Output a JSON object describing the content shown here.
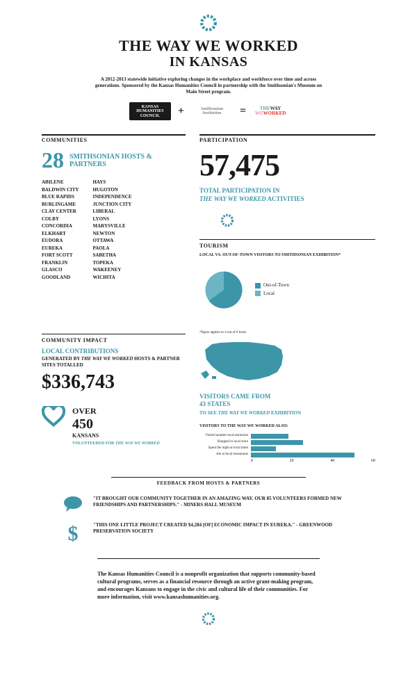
{
  "colors": {
    "teal": "#3d95a8",
    "teal_light": "#6bb5c4",
    "dark": "#1a1a1a",
    "gray": "#888888"
  },
  "title": {
    "line1": "THE WAY WE WORKED",
    "line2": "IN KANSAS"
  },
  "subtitle": "A 2012-2013 statewide initiative exploring changes in the workplace and workforce over time and across generations. Sponsored by the Kansas Humanities Council in partnership with the Smithsonian's Museum on Main Street program.",
  "logos": {
    "kh": "KANSAS HUMANITIES COUNCIL",
    "plus": "+",
    "si": "Smithsonian Institution",
    "eq": "=",
    "tww_1": "THE",
    "tww_2": "WAY",
    "tww_3": "WE",
    "tww_4": "WORKED"
  },
  "communities": {
    "label": "COMMUNITIES",
    "num": "28",
    "sub": "SMITHSONIAN HOSTS & PARTNERS",
    "col1": [
      "ABILENE",
      "BALDWIN CITY",
      "BLUE RAPIDS",
      "BURLINGAME",
      "CLAY CENTER",
      "COLBY",
      "CONCORDIA",
      "ELKHART",
      "EUDORA",
      "EUREKA",
      "FORT SCOTT",
      "FRANKLIN",
      "GLASCO",
      "GOODLAND"
    ],
    "col2": [
      "HAYS",
      "HUGOTON",
      "INDEPENDENCE",
      "JUNCTION CITY",
      "LIBERAL",
      "LYONS",
      "MARYSVILLE",
      "NEWTON",
      "OTTAWA",
      "PAOLA",
      "SABETHA",
      "TOPEKA",
      "WAKEENEY",
      "WICHITA"
    ]
  },
  "participation": {
    "label": "PARTICIPATION",
    "num": "57,475",
    "sub1": "TOTAL PARTICIPATION IN",
    "sub2": "THE WAY WE WORKED",
    "sub3": " ACTIVITIES"
  },
  "tourism": {
    "label": "TOURISM",
    "sub": "LOCAL VS. OUT-OF-TOWN VISITORS TO SMITHSONIAN EXHIBITION*",
    "note": "*figure applies to 4 out of 6 hosts",
    "pie": {
      "out_of_town": 65,
      "local": 35
    },
    "legend": {
      "a": "Out-of-Town",
      "b": "Local"
    }
  },
  "impact": {
    "label": "COMMUNITY IMPACT",
    "sub1": "LOCAL CONTRIBUTIONS",
    "sub2_a": "GENERATED BY ",
    "sub2_b": "THE WAY WE WORKED",
    "sub2_c": " HOSTS & PARTNER SITES TOTALLED",
    "num": "$336,743"
  },
  "volunteers": {
    "over": "OVER",
    "num": "450",
    "sub1": "KANSANS",
    "sub2": "VOLUNTEERED FOR ",
    "sub3": "THE WAY WE WORKED"
  },
  "visitors": {
    "line1": "VISITORS CAME FROM",
    "line2": "43 STATES",
    "line3_a": "TO SEE ",
    "line3_b": "THE WAY WE WORKED",
    "line3_c": " EXHIBITION",
    "chart_title": "VISITORS TO THE WAY WE WORKED ALSO:",
    "bars": [
      {
        "label": "Visited another local attraction",
        "value": 18
      },
      {
        "label": "Shopped in local store",
        "value": 25
      },
      {
        "label": "Spent the night at local hotel",
        "value": 12
      },
      {
        "label": "Ate at local restaurants",
        "value": 50
      }
    ],
    "axis": [
      "0",
      "20",
      "40",
      "60"
    ],
    "axis_max": 60
  },
  "feedback": {
    "label": "FEEDBACK FROM HOSTS & PARTNERS",
    "q1": "\"IT BROUGHT OUR COMMUNITY TOGETHER IN AN AMAZING WAY. OUR 85 VOLUNTEERS FORMED NEW FRIENDSHIPS AND PARTNERSHIPS.\" - MINERS HALL MUSEUM",
    "q2": "\"THIS ONE LITTLE PROJECT CREATED $4,284 [OF] ECONOMIC IMPACT IN EUREKA.\" - GREENWOOD PRESERVATION SOCIETY"
  },
  "footer": "The Kansas Humanities Council is a nonprofit organization that supports community-based cultural programs, serves as a financial resource through an active grant-making program, and encourages Kansans to engage in the civic and cultural life of their communities. For more information, visit www.kansashumanities.org."
}
